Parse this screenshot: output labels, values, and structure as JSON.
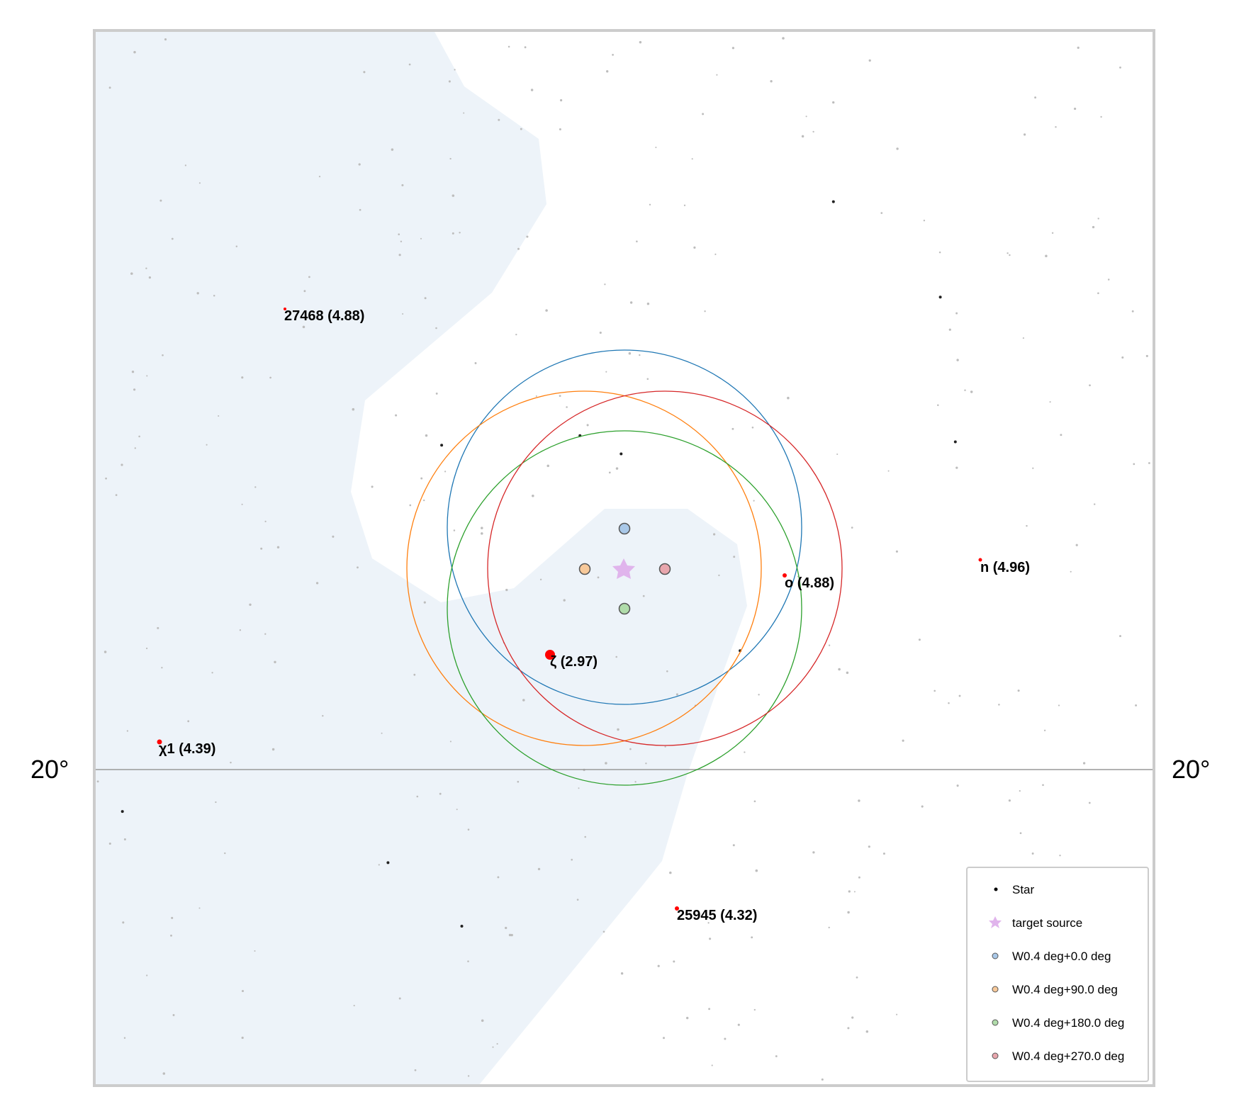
{
  "chart_data": {
    "type": "scatter",
    "grid_line_label": "20°",
    "target": {
      "name": "target source",
      "marker": "star",
      "color": "#e0b4ec"
    },
    "fov_circles": [
      {
        "name": "W0.4 deg+0.0 deg",
        "offset_deg": 0,
        "color": "#1f77b4",
        "fill": "#a9c8e8"
      },
      {
        "name": "W0.4 deg+90.0 deg",
        "offset_deg": 90,
        "color": "#ff7f0e",
        "fill": "#f7c99a"
      },
      {
        "name": "W0.4 deg+180.0 deg",
        "offset_deg": 180,
        "color": "#2ca02c",
        "fill": "#b0dcaa"
      },
      {
        "name": "W0.4 deg+270.0 deg",
        "offset_deg": 270,
        "color": "#d62728",
        "fill": "#e8a6ad"
      }
    ],
    "named_stars": [
      {
        "label": "27468 (4.88)",
        "mag": 4.88
      },
      {
        "label": "ζ (2.97)",
        "mag": 2.97
      },
      {
        "label": "ο (4.88)",
        "mag": 4.88
      },
      {
        "label": "n (4.96)",
        "mag": 4.96
      },
      {
        "label": "χ1 (4.39)",
        "mag": 4.39
      },
      {
        "label": "25945 (4.32)",
        "mag": 4.32
      }
    ],
    "legend": {
      "position": "lower-right",
      "entries": [
        "Star",
        "target source",
        "W0.4 deg+0.0 deg",
        "W0.4 deg+90.0 deg",
        "W0.4 deg+180.0 deg",
        "W0.4 deg+270.0 deg"
      ]
    },
    "colors": {
      "constellation_boundary_fill": "#edf3f9",
      "frame": "#cccccc",
      "dec_line": "#999999",
      "named_star": "#ff0000",
      "star": "#000000"
    }
  }
}
